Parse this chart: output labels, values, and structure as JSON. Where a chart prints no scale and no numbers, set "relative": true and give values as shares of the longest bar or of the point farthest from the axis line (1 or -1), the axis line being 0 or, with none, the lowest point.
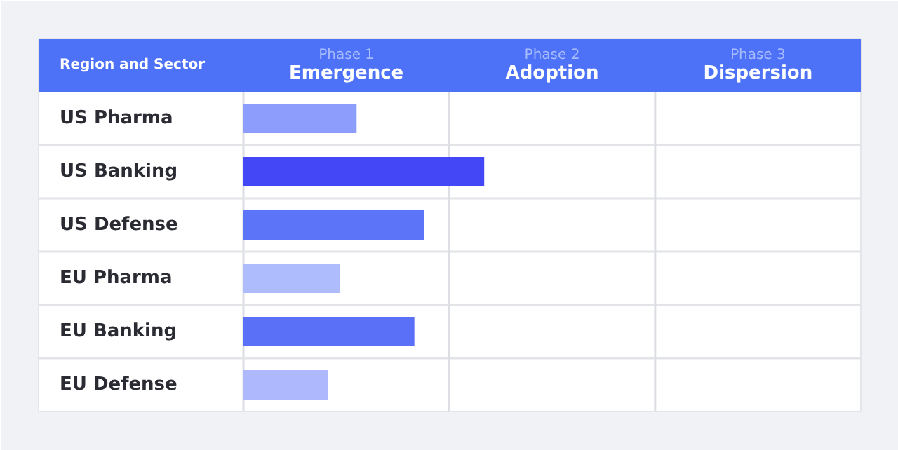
{
  "chart_data": {
    "type": "bar",
    "orientation": "horizontal",
    "relative": true,
    "ylabel": "Region and Sector",
    "categories": [
      "US Pharma",
      "US Banking",
      "US Defense",
      "EU Pharma",
      "EU Banking",
      "EU Defense"
    ],
    "values": [
      0.47,
      1,
      0.75,
      0.4,
      0.71,
      0.35
    ],
    "colors": [
      "#8c9dfb",
      "#4347f5",
      "#5b74f8",
      "#aebbfc",
      "#5a70f7",
      "#adb9fc"
    ],
    "annotations": [
      "Phase 1",
      "Emergence",
      "Phase 2",
      "Adoption",
      "Phase 3",
      "Dispersion"
    ],
    "ref_lines": [
      {
        "axis": "x",
        "value": 0.855
      },
      {
        "axis": "x",
        "value": 1.71
      }
    ],
    "grid": true
  }
}
